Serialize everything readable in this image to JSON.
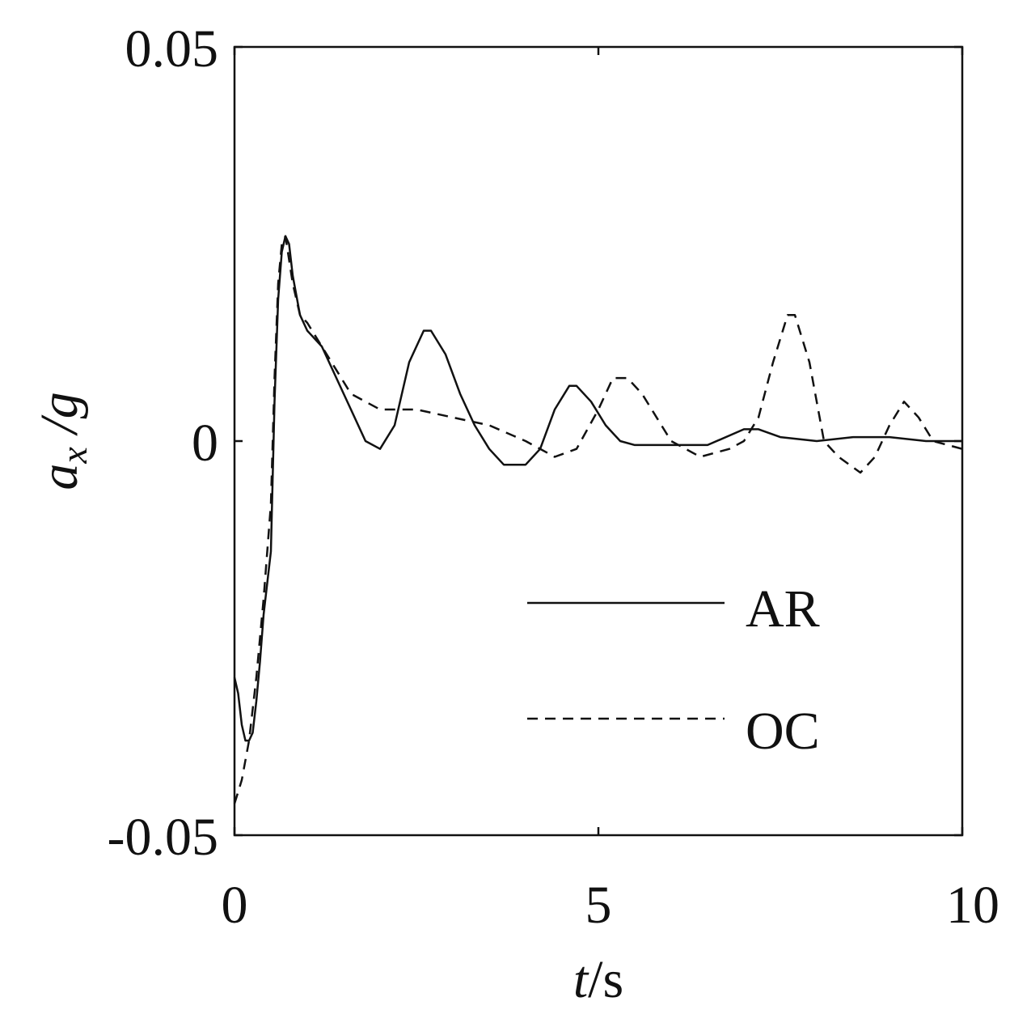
{
  "chart_data": {
    "type": "line",
    "xlabel": {
      "var": "t",
      "unit": "/s"
    },
    "ylabel": {
      "var": "a",
      "sub": "x",
      "rest": " /g"
    },
    "xlim": [
      0,
      10
    ],
    "ylim": [
      -0.05,
      0.05
    ],
    "xticks": [
      0,
      5,
      10
    ],
    "xtick_labels": [
      "0",
      "5",
      "10"
    ],
    "yticks": [
      0.05,
      0,
      -0.05
    ],
    "ytick_labels": [
      "0.05",
      "0",
      "-0.05"
    ],
    "grid": false,
    "legend_position": "bottom-right",
    "series": [
      {
        "name": "AR",
        "dash": "solid",
        "x": [
          0,
          0.05,
          0.1,
          0.15,
          0.2,
          0.25,
          0.3,
          0.35,
          0.4,
          0.5,
          0.55,
          0.6,
          0.65,
          0.7,
          0.75,
          0.8,
          0.9,
          1.0,
          1.2,
          1.4,
          1.6,
          1.8,
          2.0,
          2.2,
          2.4,
          2.6,
          2.7,
          2.9,
          3.1,
          3.3,
          3.5,
          3.7,
          3.9,
          4.0,
          4.2,
          4.4,
          4.6,
          4.7,
          4.9,
          5.1,
          5.3,
          5.5,
          6.0,
          6.5,
          7.0,
          7.2,
          7.5,
          8.0,
          8.5,
          9.0,
          9.5,
          10.0
        ],
        "y": [
          -0.03,
          -0.032,
          -0.036,
          -0.038,
          -0.038,
          -0.037,
          -0.033,
          -0.028,
          -0.022,
          -0.014,
          0.005,
          0.018,
          0.024,
          0.026,
          0.025,
          0.021,
          0.016,
          0.014,
          0.012,
          0.008,
          0.004,
          0.0,
          -0.001,
          0.002,
          0.01,
          0.014,
          0.014,
          0.011,
          0.006,
          0.002,
          -0.001,
          -0.003,
          -0.003,
          -0.003,
          -0.001,
          0.004,
          0.007,
          0.007,
          0.005,
          0.002,
          0.0,
          -0.0005,
          -0.0005,
          -0.0005,
          0.0015,
          0.0015,
          0.0005,
          0.0,
          0.0005,
          0.0005,
          0.0,
          0.0
        ]
      },
      {
        "name": "OC",
        "dash": "dashed",
        "x": [
          0,
          0.1,
          0.2,
          0.3,
          0.4,
          0.5,
          0.55,
          0.6,
          0.65,
          0.7,
          0.8,
          0.9,
          1.0,
          1.2,
          1.4,
          1.6,
          1.8,
          2.0,
          2.5,
          3.0,
          3.5,
          4.0,
          4.4,
          4.7,
          5.0,
          5.2,
          5.4,
          5.6,
          5.8,
          6.0,
          6.4,
          6.8,
          7.0,
          7.2,
          7.4,
          7.6,
          7.7,
          7.9,
          8.1,
          8.3,
          8.6,
          8.8,
          9.0,
          9.2,
          9.4,
          9.6,
          10.0
        ],
        "y": [
          -0.046,
          -0.043,
          -0.038,
          -0.03,
          -0.02,
          -0.008,
          0.008,
          0.02,
          0.025,
          0.026,
          0.02,
          0.016,
          0.015,
          0.012,
          0.009,
          0.006,
          0.005,
          0.004,
          0.004,
          0.003,
          0.002,
          0.0,
          -0.002,
          -0.001,
          0.004,
          0.008,
          0.008,
          0.006,
          0.003,
          0.0,
          -0.002,
          -0.001,
          0.0,
          0.003,
          0.01,
          0.016,
          0.016,
          0.01,
          0.0,
          -0.002,
          -0.004,
          -0.002,
          0.002,
          0.005,
          0.003,
          0.0,
          -0.001
        ]
      }
    ]
  }
}
